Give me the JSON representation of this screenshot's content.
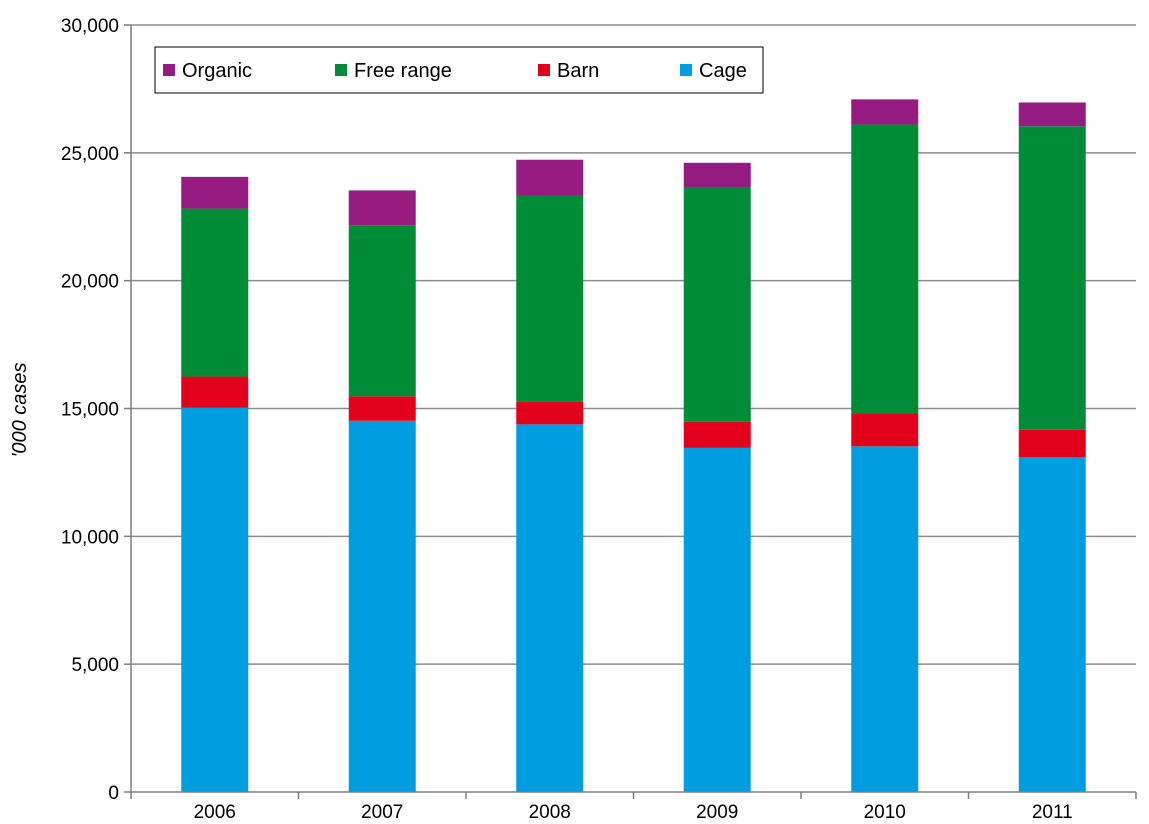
{
  "chart_data": {
    "type": "bar",
    "stacked": true,
    "categories": [
      "2006",
      "2007",
      "2008",
      "2009",
      "2010",
      "2011"
    ],
    "series": [
      {
        "name": "Cage",
        "color": "#009ee0",
        "values": [
          15030,
          14520,
          14380,
          13460,
          13520,
          13090
        ]
      },
      {
        "name": "Barn",
        "color": "#e2001a",
        "values": [
          1220,
          960,
          900,
          1020,
          1300,
          1080
        ]
      },
      {
        "name": "Free range",
        "color": "#008c37",
        "values": [
          6570,
          6690,
          8050,
          9160,
          11290,
          11870
        ]
      },
      {
        "name": "Organic",
        "color": "#951b81",
        "values": [
          1240,
          1360,
          1400,
          970,
          980,
          930
        ]
      }
    ],
    "legend_order": [
      "Organic",
      "Free range",
      "Barn",
      "Cage"
    ],
    "legend_position": "top-left",
    "ylabel": "'000 cases",
    "xlabel": "",
    "ylim": [
      0,
      30000
    ],
    "yticks": [
      0,
      5000,
      10000,
      15000,
      20000,
      25000,
      30000
    ],
    "ytick_labels": [
      "0",
      "5,000",
      "10,000",
      "15,000",
      "20,000",
      "25,000",
      "30,000"
    ],
    "grid": "horizontal"
  }
}
